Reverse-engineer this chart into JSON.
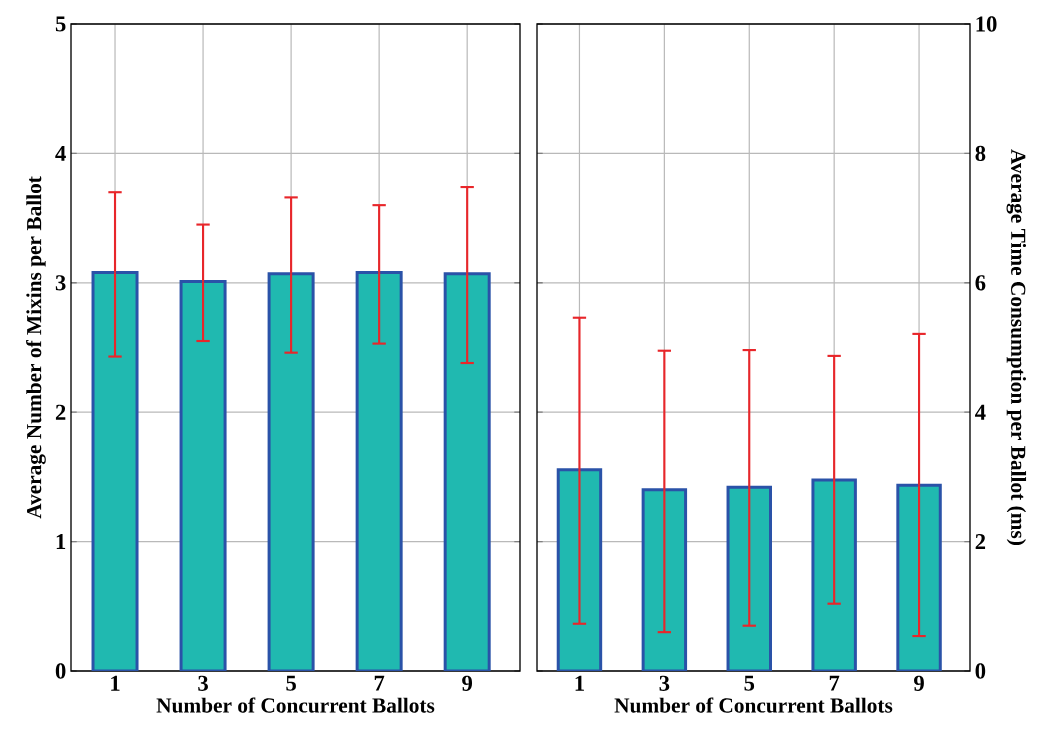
{
  "chart_data": [
    {
      "type": "bar",
      "categories": [
        "1",
        "3",
        "5",
        "7",
        "9"
      ],
      "xlabel": "Number of Concurrent Ballots",
      "ylabel": "Average Number of Mixins per Ballot",
      "values": [
        3.08,
        3.01,
        3.07,
        3.08,
        3.07
      ],
      "color": "#20b9b0",
      "errors": [
        [
          2.43,
          3.7
        ],
        [
          2.55,
          3.45
        ],
        [
          2.46,
          3.66
        ],
        [
          2.53,
          3.6
        ],
        [
          2.38,
          3.74
        ]
      ],
      "ylim": [
        0,
        5
      ],
      "yticks": [
        0,
        1,
        2,
        3,
        4,
        5
      ],
      "grid": true
    },
    {
      "type": "bar",
      "categories": [
        "1",
        "3",
        "5",
        "7",
        "9"
      ],
      "xlabel": "Number of Concurrent Ballots",
      "y2label": "Average Time Consumption per Ballot (ms)",
      "series": [
        {
          "color": "#20b9b0",
          "axis": "y2",
          "values": [
            3.11,
            2.8,
            2.84,
            2.95,
            2.87
          ],
          "errors": [
            [
              0.73,
              5.46
            ],
            [
              0.6,
              4.95
            ],
            [
              0.7,
              4.96
            ],
            [
              1.04,
              4.87
            ],
            [
              0.54,
              5.21
            ]
          ]
        }
      ],
      "y2lim": [
        0,
        10
      ],
      "y2ticks": [
        0,
        2,
        4,
        6,
        8,
        10
      ],
      "grid": true
    }
  ]
}
